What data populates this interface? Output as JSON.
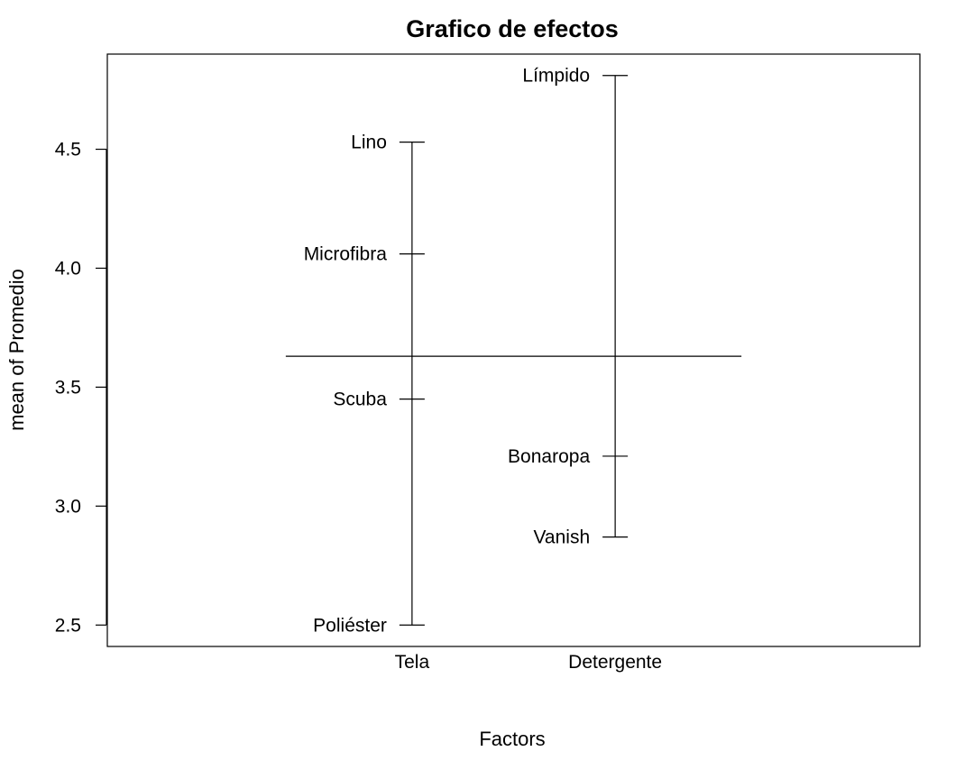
{
  "chart_data": {
    "type": "factor_effects",
    "title": "Grafico de efectos",
    "xlabel": "Factors",
    "ylabel": "mean of Promedio",
    "ylim": [
      2.41,
      4.9
    ],
    "yticks": [
      "2.5",
      "3.0",
      "3.5",
      "4.0",
      "4.5"
    ],
    "grand_mean": 3.63,
    "factors": [
      {
        "name": "Tela",
        "levels": [
          {
            "label": "Lino",
            "value": 4.53
          },
          {
            "label": "Microfibra",
            "value": 4.06
          },
          {
            "label": "Scuba",
            "value": 3.45
          },
          {
            "label": "Poliéster",
            "value": 2.5
          }
        ]
      },
      {
        "name": "Detergente",
        "levels": [
          {
            "label": "Límpido",
            "value": 4.81
          },
          {
            "label": "Bonaropa",
            "value": 3.21
          },
          {
            "label": "Vanish",
            "value": 2.87
          }
        ]
      }
    ],
    "legend": "none",
    "grid": false
  }
}
